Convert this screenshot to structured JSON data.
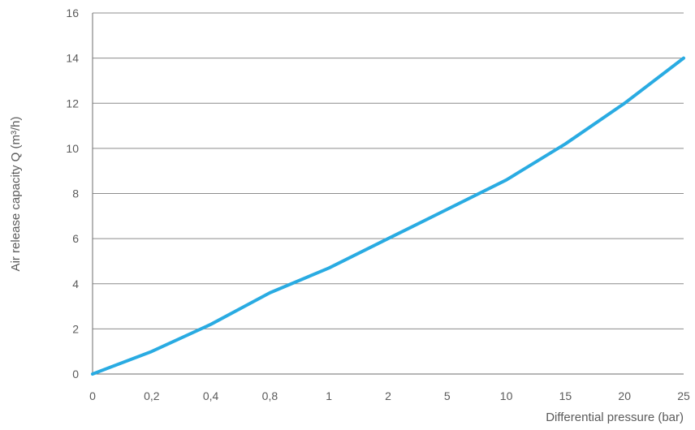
{
  "chart_data": {
    "type": "line",
    "title": "",
    "xlabel": "Differential pressure (bar)",
    "ylabel": "Air release capacity Q (m³/h)",
    "x_scale": "categorical (evenly spaced ticks)",
    "categories": [
      "0",
      "0,2",
      "0,4",
      "0,8",
      "1",
      "2",
      "5",
      "10",
      "15",
      "20",
      "25"
    ],
    "y_ticks": [
      "0",
      "2",
      "4",
      "6",
      "8",
      "10",
      "12",
      "14",
      "16"
    ],
    "ylim": [
      0,
      16
    ],
    "grid": "horizontal",
    "series": [
      {
        "color": "#29ABE2",
        "values": [
          0,
          1.0,
          2.2,
          3.6,
          4.7,
          6.0,
          7.3,
          8.6,
          10.2,
          12.0,
          14.0
        ]
      }
    ]
  }
}
